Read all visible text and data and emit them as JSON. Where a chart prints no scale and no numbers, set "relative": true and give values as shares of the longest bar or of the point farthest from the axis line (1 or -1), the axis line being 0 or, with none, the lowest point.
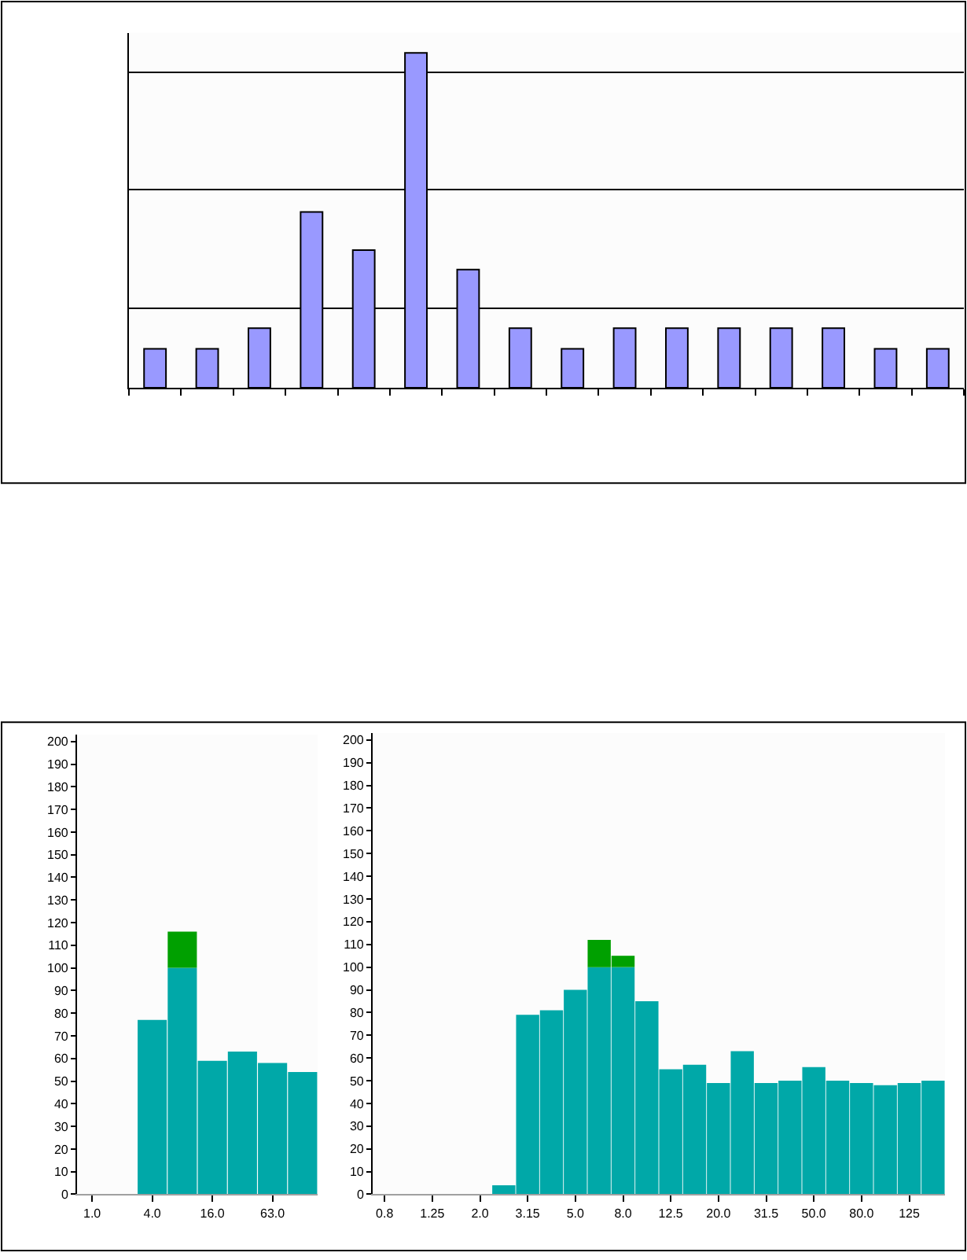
{
  "chart_data": [
    {
      "type": "bar",
      "relative": true,
      "grid": "y",
      "categories": [
        null,
        null,
        null,
        null,
        null,
        null,
        null,
        null,
        null,
        null,
        null,
        null,
        null,
        null,
        null,
        null
      ],
      "series": [
        {
          "color": "#9999ff",
          "values": [
            0.116,
            0.116,
            0.178,
            0.525,
            0.411,
            1,
            0.353,
            0.178,
            0.116,
            0.178,
            0.178,
            0.178,
            0.178,
            0.178,
            0.116,
            0.116
          ]
        }
      ]
    },
    {
      "type": "bar",
      "stacked": true,
      "categories": [
        "1.0",
        null,
        "4.0",
        null,
        "16.0",
        null,
        "63.0",
        null
      ],
      "ylim": [
        0,
        203
      ],
      "yticks": [
        0,
        10,
        20,
        30,
        40,
        50,
        60,
        70,
        80,
        90,
        100,
        110,
        120,
        130,
        140,
        150,
        160,
        170,
        180,
        190,
        200
      ],
      "series": [
        {
          "color": "#00a8a8",
          "values": [
            0,
            0,
            77,
            100,
            59,
            63,
            58,
            54
          ]
        },
        {
          "color": "#00a000",
          "values": [
            0,
            0,
            0,
            16,
            0,
            0,
            0,
            0
          ]
        }
      ]
    },
    {
      "type": "bar",
      "stacked": true,
      "categories": [
        "0.8",
        null,
        "1.25",
        null,
        "2.0",
        null,
        "3.15",
        null,
        "5.0",
        null,
        "8.0",
        null,
        "12.5",
        null,
        "20.0",
        null,
        "31.5",
        null,
        "50.0",
        null,
        "80.0",
        null,
        "125",
        null
      ],
      "ylim": [
        0,
        203
      ],
      "yticks": [
        0,
        10,
        20,
        30,
        40,
        50,
        60,
        70,
        80,
        90,
        100,
        110,
        120,
        130,
        140,
        150,
        160,
        170,
        180,
        190,
        200
      ],
      "series": [
        {
          "color": "#00a8a8",
          "values": [
            0,
            0,
            0,
            0,
            0,
            4,
            79,
            81,
            90,
            100,
            100,
            85,
            55,
            57,
            49,
            63,
            49,
            50,
            56,
            50,
            49,
            48,
            49,
            50
          ]
        },
        {
          "color": "#00a000",
          "values": [
            0,
            0,
            0,
            0,
            0,
            0,
            0,
            0,
            0,
            12,
            5,
            0,
            0,
            0,
            0,
            0,
            0,
            0,
            0,
            0,
            0,
            0,
            0,
            0
          ]
        }
      ]
    }
  ]
}
